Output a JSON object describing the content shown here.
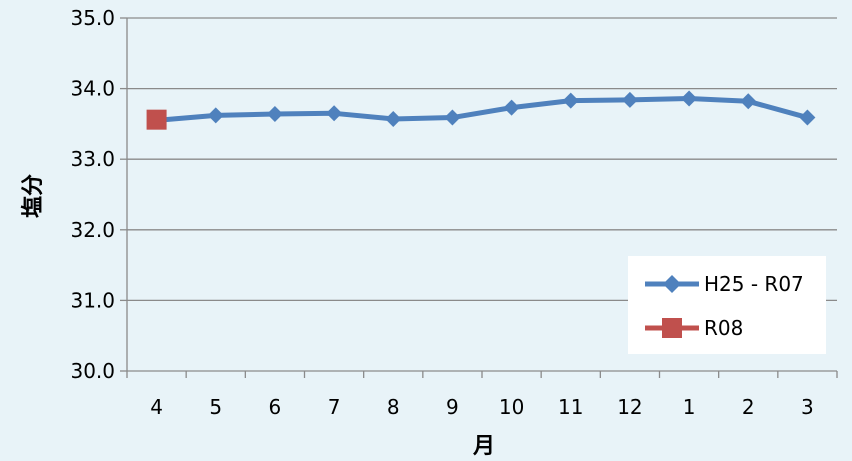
{
  "chart_data": {
    "type": "line",
    "categories": [
      "4",
      "5",
      "6",
      "7",
      "8",
      "9",
      "10",
      "11",
      "12",
      "1",
      "2",
      "3"
    ],
    "series": [
      {
        "name": "H25 - R07",
        "color": "#4f81bd",
        "marker": "diamond",
        "values": [
          33.55,
          33.62,
          33.64,
          33.65,
          33.57,
          33.59,
          33.73,
          33.83,
          33.84,
          33.86,
          33.82,
          33.59
        ]
      },
      {
        "name": "R08",
        "color": "#c0504d",
        "marker": "square",
        "values": [
          33.56,
          null,
          null,
          null,
          null,
          null,
          null,
          null,
          null,
          null,
          null,
          null
        ]
      }
    ],
    "xlabel": "月",
    "ylabel": "塩分",
    "ylim": [
      30.0,
      35.0
    ],
    "yticks": [
      "30.0",
      "31.0",
      "32.0",
      "33.0",
      "34.0",
      "35.0"
    ],
    "grid": "horizontal",
    "legend_position": "bottom-right"
  }
}
